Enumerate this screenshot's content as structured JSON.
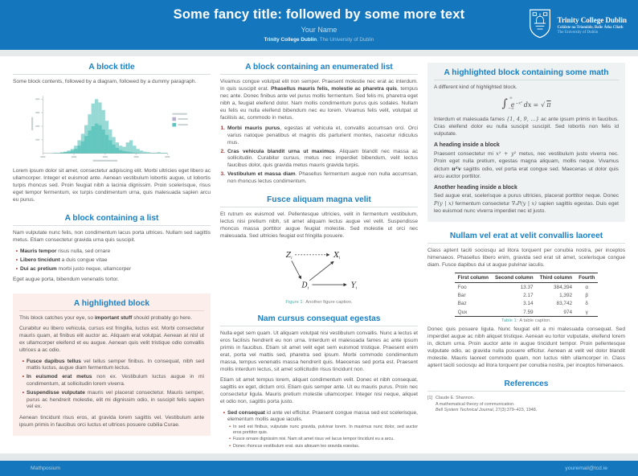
{
  "header": {
    "title": "Some fancy title: followed by some more text",
    "author": "Your Name",
    "institution_bold": "Trinity College Dublin",
    "institution_rest": ", The University of Dublin",
    "logo": {
      "line1": "Trinity College Dublin",
      "line2": "Coláiste na Tríonóide, Baile Átha Cliath",
      "line3": "The University of Dublin"
    }
  },
  "footer": {
    "left": "Mathposium",
    "right": "youremail@tcd.ie"
  },
  "colors": {
    "header_blue": "#1477bd",
    "block_title_blue": "#1b80c4",
    "accent_red": "#a63a35",
    "highlight_pink": "#fbeeeb",
    "highlight_gray": "#eef2f2",
    "teal": "#2fb3a9",
    "caption_teal": "#43b3ae"
  },
  "c1b1": {
    "title": "A block title",
    "p1": "Some block contents, followed by a diagram, followed by a dummy paragraph.",
    "p2": "Lorem ipsum dolor sit amet, consectetur adipiscing elit. Morbi ultricies eget libero ac ullamcorper. Integer et euismod ante. Aenean vestibulum lobortis augue, ut lobortis turpis rhoncus sed. Proin feugiat nibh a lacinia dignissim. Proin scelerisque, risus eget tempor fermentum, ex turpis condimentum urna, quis malesuada sapien arcu eu purus."
  },
  "c1b2": {
    "title": "A block containing a list",
    "p1": "Nam vulputate nunc felis, non condimentum lacus porta ultrices. Nullam sed sagittis metus. Etiam consectetur gravida urna quis suscipit.",
    "items": [
      {
        "lead": "Mauris tempor",
        "rest": " risus nulla, sed ornare"
      },
      {
        "lead": "Libero tincidunt",
        "rest": " a duis congue vitae"
      },
      {
        "lead": "Dui ac pretium",
        "rest": " morbi justo neque, ullamcorper"
      }
    ],
    "p2": "Eget augue porta, bibendum venenatis tortor."
  },
  "c1b3": {
    "title": "A highlighted block",
    "p1": [
      {
        "t": "This block catches your eye, so "
      },
      {
        "t": "important stuff",
        "b": true
      },
      {
        "t": " should probably go here."
      }
    ],
    "p2": "Curabitur eu libero vehicula, cursus est fringilla, luctus est. Morbi consectetur mauris quam, at finibus elit auctor ac. Aliquam erat volutpat. Aenean at nisl ut ex ullamcorper eleifend et eu augue. Aenean quis velit tristique odio convallis ultrices a ac odio.",
    "items": [
      {
        "lead": "Fusce dapibus tellus",
        "rest": " vel tellus semper finibus. In consequat, nibh sed mattis luctus, augue diam fermentum lectus."
      },
      {
        "lead": "In euismod erat metus",
        "rest": " non ex. Vestibulum luctus augue in mi condimentum, at sollicitudin lorem viverra."
      },
      {
        "lead": "Suspendisse vulputate",
        "rest": " mauris vel placerat consectetur. Mauris semper, purus ac hendrerit molestie, elit mi dignissim odio, in suscipit felis sapien vel ex."
      }
    ],
    "p3": "Aenean tincidunt risus eros, at gravida lorem sagittis vel. Vestibulum ante ipsum primis in faucibus orci luctus et ultrices posuere cubilia Curae."
  },
  "c2b1": {
    "title": "A block containing an enumerated list",
    "p1": [
      {
        "t": "Vivamus congue volutpat elit non semper. Praesent molestie nec erat ac interdum. In quis suscipit erat. "
      },
      {
        "t": "Phasellus mauris felis, molestie ac pharetra quis",
        "b": true
      },
      {
        "t": ", tempus nec ante. Donec finibus ante vel purus mollis fermentum. Sed felis mi, pharetra eget nibh a, feugiat eleifend dolor. Nam mollis condimentum purus quis sodales. Nullam eu felis eu nulla eleifend bibendum nec eu lorem. Vivamus felis velit, volutpat ut facilisis ac, commodo in metus."
      }
    ],
    "items": [
      {
        "lead": "Morbi mauris purus",
        "rest": ", egestas at vehicula et, convallis accumsan orci. Orci varius natoque penatibus et magnis dis parturient montes, nascetur ridiculus mus."
      },
      {
        "lead": "Cras vehicula blandit urna ut maximus",
        "rest": ". Aliquam blandit nec massa ac sollicitudin. Curabitur cursus, metus nec imperdiet bibendum, velit lectus faucibus dolor, quis gravida metus mauris gravida turpis."
      },
      {
        "lead": "Vestibulum et massa diam",
        "rest": ". Phasellus fermentum augue non nulla accumsan, non rhoncus lectus condimentum."
      }
    ]
  },
  "c2b2": {
    "title": "Fusce aliquam magna velit",
    "p1": "Et rutrum ex euismod vel. Pellentesque ultricies, velit in fermentum vestibulum, lectus nisi pretium nibh, sit amet aliquam lectus augue vel velit. Suspendisse rhoncus massa porttitor augue feugiat molestie. Sed molestie ut orci nec malesuada. Sed ultricies feugiat est fringilla posuere."
  },
  "c2b3": {
    "title": "Nam cursus consequat egestas",
    "p1": "Nulla eget sem quam. Ut aliquam volutpat nisi vestibulum convallis. Nunc a lectus et eros facilisis hendrerit eu non urna. Interdum et malesuada fames ac ante ipsum primis in faucibus. Etiam sit amet velit eget sem euismod tristique. Praesent enim erat, porta vel mattis sed, pharetra sed ipsum. Morbi commodo condimentum massa, tempus venenatis massa hendrerit quis. Maecenas sed porta est. Praesent mollis interdum lectus, sit amet sollicitudin risus tincidunt non.",
    "p2": "Etiam sit amet tempus lorem, aliquet condimentum velit. Donec et nibh consequat, sagittis ex eget, dictum orci. Etiam quis semper ante. Ut eu mauris purus. Proin nec consectetur ligula. Mauris pretium molestie ullamcorper. Integer nisi neque, aliquet et odio non, sagittis porta justo.",
    "items": [
      {
        "lead": "Sed consequat",
        "rest": " id ante vel efficitur. Praesent congue massa sed est scelerisque, elementum mollis augue iaculis.",
        "subs": [
          "In sed est finibus, vulputate nunc gravida, pulvinar lorem. In maximus nunc dolor, sed auctor eros porttitor quis.",
          "Fusce ornare dignissim nisi. Nam sit amet risus vel lacus tempor tincidunt eu a arcu.",
          "Donec rhoncus vestibulum erat, quis aliquam leo gravida egestas."
        ]
      },
      {
        "lead": "Sed luctus, elit sit amet",
        "rest": " dictum maximus, diam dolor faucibus purus, sed lobortis justo erat id turpis."
      },
      {
        "lead": "Pellentesque facilisis dolor in leo",
        "rest": " bibendum congue. Maecenas congue finibus justo, vitae eleifend urna facilisis at."
      }
    ]
  },
  "c3b1": {
    "title": "A highlighted block containing some math",
    "p1": "A different kind of highlighted block.",
    "math": {
      "int": "∫",
      "upper": "∞",
      "lower": "−∞",
      "base": "e",
      "exp": "−x²",
      "mid": "dx",
      "eq": "=",
      "sqrt": "√",
      "rad": "π"
    },
    "p2": [
      {
        "t": "Interdum et malesuada fames "
      },
      {
        "t": "{1, 4, 9, …}",
        "m": true
      },
      {
        "t": " ac ante ipsum primis in faucibus. Cras eleifend dolor eu nulla suscipit suscipit. Sed lobortis non felis id vulputate."
      }
    ],
    "h1": "A heading inside a block",
    "p3": [
      {
        "t": "Praesent consectetur mi "
      },
      {
        "t": "x² + y²",
        "m": true
      },
      {
        "t": " metus, nec vestibulum justo viverra nec. Proin eget nulla pretium, egestas magna aliquam, mollis neque. Vivamus dictum "
      },
      {
        "t": "uᵀv",
        "m": true,
        "b": true
      },
      {
        "t": " sagittis odio, vel porta erat congue sed. Maecenas ut dolor quis arcu auctor porttitor."
      }
    ],
    "h2": "Another heading inside a block",
    "p4": [
      {
        "t": "Sed augue erat, scelerisque a purus ultricies, placerat porttitor neque. Donec "
      },
      {
        "t": "P(y | x)",
        "m": true
      },
      {
        "t": " fermentum consectetur "
      },
      {
        "t": "∇ₓP(y | x)",
        "m": true
      },
      {
        "t": " sapien sagittis egestas. Duis eget leo euismod nunc viverra imperdiet nec id justo."
      }
    ]
  },
  "c3b2": {
    "title": "Nullam vel erat at velit convallis laoreet",
    "p1": "Class aptent taciti sociosqu ad litora torquent per conubia nostra, per inceptos himenaeos. Phasellus libero enim, gravida sed erat sit amet, scelerisque congue diam. Fusce dapibus dui ut augue pulvinar iaculis.",
    "p2": "Donec quis posuere ligula. Nunc feugiat elit a mi malesuada consequat. Sed imperdiet augue ac nibh aliquet tristique. Aenean eu tortor vulputate, eleifend lorem in, dictum urna. Proin auctor ante in augue tincidunt tempor. Proin pellentesque vulputate odio, ac gravida nulla posuere efficitur. Aenean at velit vel dolor blandit molestie. Mauris laoreet commodo quam, non luctus nibh ullamcorper in. Class aptent taciti sociosqu ad litora torquent per conubia nostra, per inceptos himenaeos."
  },
  "table": {
    "headers": [
      "First column",
      "Second column",
      "Third column",
      "Fourth"
    ],
    "rows": [
      [
        "Foo",
        "13.37",
        "384,394",
        "α"
      ],
      [
        "Bar",
        "2.17",
        "1,392",
        "β"
      ],
      [
        "Baz",
        "3.14",
        "83,742",
        "δ"
      ],
      [
        "Qux",
        "7.59",
        "974",
        "γ"
      ]
    ],
    "caption_label": "Table 1:",
    "caption_text": "A table caption."
  },
  "references": {
    "title": "References",
    "items": [
      {
        "num": "[1]",
        "lines": [
          [
            {
              "t": "Claude E. Shannon."
            }
          ],
          [
            {
              "t": "A mathematical theory of communication."
            }
          ],
          [
            {
              "t": "Bell System Technical Journal",
              "i": true
            },
            {
              "t": ", 27(3):379–423, 1948."
            }
          ]
        ]
      }
    ]
  },
  "figure_dag": {
    "nodes": [
      "Z",
      "X",
      "D",
      "Y"
    ],
    "sub": "i",
    "edges": [
      [
        "Z",
        "X",
        "dotted"
      ],
      [
        "Z",
        "D",
        "solid"
      ],
      [
        "D",
        "X",
        "solid"
      ],
      [
        "D",
        "Y",
        "solid"
      ]
    ],
    "caption_label": "Figure 1:",
    "caption_text": "Another figure caption."
  },
  "chart_data": {
    "type": "histogram",
    "bins": 36,
    "ylim": [
      0,
      100
    ],
    "series": [
      {
        "name": "series-a",
        "color": "#2fb3a9",
        "values": [
          0,
          0,
          0,
          1,
          1,
          2,
          3,
          5,
          8,
          14,
          24,
          36,
          52,
          72,
          92,
          100,
          94,
          80,
          60,
          44,
          30,
          20,
          14,
          12,
          20,
          24,
          14,
          8,
          5,
          3,
          2,
          1,
          1,
          2,
          1,
          1
        ]
      },
      {
        "name": "series-b",
        "color": "#2fb3a9",
        "values": [
          0,
          0,
          0,
          0,
          0,
          1,
          2,
          3,
          5,
          8,
          14,
          22,
          32,
          42,
          50,
          55,
          52,
          44,
          34,
          24,
          16,
          10,
          6,
          4,
          3,
          2,
          1,
          1,
          0,
          0,
          0,
          0,
          0,
          0,
          0,
          0
        ]
      }
    ],
    "legend_swatches": [
      "#b9aecb",
      "#5fc4bd"
    ]
  }
}
